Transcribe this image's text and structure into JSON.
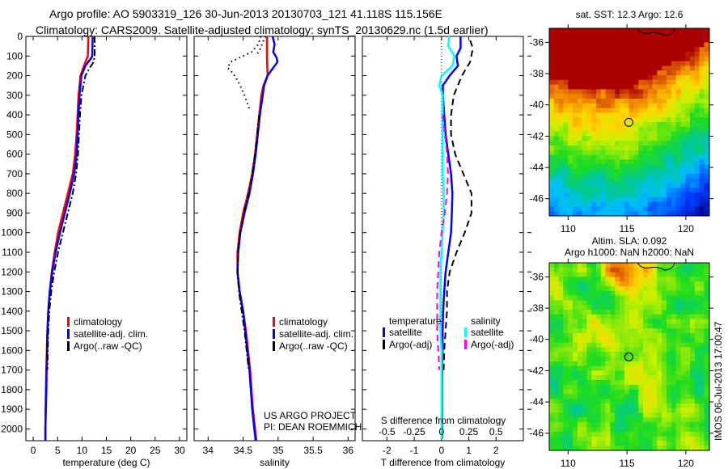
{
  "title_line1": "Argo profile: AO 5903319_126 30-Jun-2013 20130703_121 41.118S 115.156E",
  "title_line2": "Climatology: CARS2009. Satellite-adjusted climatology: synTS_20130629.nc (1.5d earlier)",
  "credit_line1": "US ARGO PROJECT",
  "credit_line2": "PI: DEAN ROEMMICH",
  "timestamp": "IMOS 06-Jul-2013 17:00:47",
  "colors": {
    "climatology": "#ff0000",
    "satellite": "#0000ff",
    "argo": "#000000",
    "salinity_satellite": "#00ffff",
    "salinity_argo": "#ff00ff"
  },
  "chart_data": [
    {
      "type": "line",
      "id": "temperature",
      "xlabel": "temperature (deg C)",
      "ylabel": "",
      "xlim": [
        -1.5,
        31.5
      ],
      "ylim": [
        2060,
        0
      ],
      "xticks": [
        0,
        5,
        10,
        15,
        20,
        25,
        30
      ],
      "yticks": [
        0,
        100,
        200,
        300,
        400,
        500,
        600,
        700,
        800,
        900,
        1000,
        1100,
        1200,
        1300,
        1400,
        1500,
        1600,
        1700,
        1800,
        1900,
        2000
      ],
      "legend": [
        "climatology",
        "satellite-adj. clim.",
        "Argo(..raw -QC)"
      ],
      "legend_position": "lower-center",
      "series": [
        {
          "name": "climatology",
          "style": "solid",
          "color": "#ff0000",
          "depth": [
            0,
            100,
            150,
            200,
            300,
            400,
            500,
            600,
            700,
            800,
            900,
            1000,
            1100,
            1200,
            1300,
            1400,
            1500,
            1600,
            1700,
            1800,
            1900,
            2000,
            2060
          ],
          "values": [
            11.3,
            11.2,
            10.4,
            9.7,
            9.3,
            9.1,
            8.9,
            8.6,
            8.1,
            7.1,
            6.1,
            5.1,
            4.4,
            3.8,
            3.4,
            3.1,
            2.9,
            2.8,
            2.7,
            2.6,
            2.55,
            2.5,
            2.5
          ]
        },
        {
          "name": "satellite-adj. clim.",
          "style": "solid",
          "color": "#0000ff",
          "depth": [
            0,
            100,
            110,
            150,
            200,
            300,
            400,
            500,
            600,
            700,
            800,
            900,
            1000,
            1100,
            1200,
            1300,
            1400,
            1500,
            1600,
            1700,
            1800,
            1900,
            2000,
            2060
          ],
          "values": [
            12.2,
            12.1,
            11.9,
            10.7,
            9.9,
            9.5,
            9.3,
            9.1,
            8.9,
            8.4,
            7.5,
            6.5,
            5.5,
            4.6,
            3.9,
            3.4,
            3.1,
            2.95,
            2.85,
            2.75,
            2.7,
            2.6,
            2.5,
            2.5
          ]
        },
        {
          "name": "Argo(..raw -QC)",
          "style": "dashdot",
          "color": "#000000",
          "depth": [
            0,
            100,
            130,
            160,
            200,
            300,
            400,
            500,
            600,
            700,
            800,
            900,
            1000,
            1100,
            1200,
            1300,
            1400,
            1500,
            1600,
            1700
          ],
          "values": [
            12.6,
            12.6,
            12.4,
            11.6,
            10.7,
            9.9,
            9.6,
            9.4,
            9.2,
            8.8,
            8.1,
            7.1,
            6.1,
            5.1,
            4.3,
            3.7,
            3.3,
            3.1,
            3.0,
            2.9
          ]
        }
      ]
    },
    {
      "type": "line",
      "id": "salinity",
      "xlabel": "salinity",
      "ylabel": "",
      "xlim": [
        33.8,
        36.1
      ],
      "ylim": [
        2060,
        0
      ],
      "xticks": [
        34,
        34.5,
        35,
        35.5,
        36
      ],
      "xticklabels": [
        "34",
        "34.5",
        "35",
        "35.5",
        "36"
      ],
      "legend": [
        "climatology",
        "satellite-adj. clim.",
        "Argo(..raw -QC)"
      ],
      "legend_position": "lower-right",
      "series": [
        {
          "name": "climatology",
          "style": "solid",
          "color": "#ff0000",
          "depth": [
            0,
            100,
            200,
            250,
            300,
            400,
            500,
            600,
            700,
            800,
            900,
            1000,
            1100,
            1200,
            1300,
            1400,
            1500,
            1600,
            1700,
            1800,
            1900,
            2000,
            2060
          ],
          "values": [
            34.84,
            34.84,
            34.85,
            34.79,
            34.76,
            34.73,
            34.7,
            34.67,
            34.63,
            34.57,
            34.5,
            34.45,
            34.42,
            34.42,
            34.45,
            34.5,
            34.54,
            34.57,
            34.6,
            34.62,
            34.64,
            34.67,
            34.69
          ]
        },
        {
          "name": "satellite-adj. clim.",
          "style": "solid",
          "color": "#0000ff",
          "depth": [
            0,
            40,
            80,
            110,
            130,
            160,
            200,
            250,
            300,
            400,
            500,
            600,
            700,
            800,
            900,
            1000,
            1100,
            1200,
            1300,
            1400,
            1500,
            1600,
            1700,
            1800,
            1900,
            2000,
            2060
          ],
          "values": [
            34.92,
            34.95,
            34.93,
            34.98,
            34.99,
            34.93,
            34.85,
            34.8,
            34.78,
            34.74,
            34.71,
            34.68,
            34.64,
            34.59,
            34.52,
            34.46,
            34.43,
            34.42,
            34.45,
            34.5,
            34.53,
            34.56,
            34.59,
            34.61,
            34.63,
            34.66,
            34.68
          ]
        },
        {
          "name": "Argo(..raw -QC)",
          "style": "dotted",
          "color": "#000000",
          "depth": [
            0,
            40,
            80,
            100,
            130,
            160,
            190,
            230,
            300,
            350,
            380
          ],
          "values": [
            34.75,
            34.72,
            34.62,
            34.5,
            34.32,
            34.28,
            34.36,
            34.43,
            34.52,
            34.57,
            34.6
          ]
        },
        {
          "name": "Argo(..raw -QC) shallow branch",
          "style": "dotted",
          "color": "#000000",
          "depth": [
            0,
            30,
            60,
            90
          ],
          "values": [
            34.82,
            34.78,
            34.75,
            34.7
          ]
        },
        {
          "name": "Argo(..raw -QC) deep",
          "style": "dashdot",
          "color": "#000000",
          "depth": [
            400,
            500,
            600,
            700,
            800,
            900,
            1000,
            1100,
            1200,
            1300,
            1400,
            1500,
            1600,
            1700
          ],
          "values": [
            34.73,
            34.7,
            34.67,
            34.63,
            34.58,
            34.51,
            34.46,
            34.43,
            34.42,
            34.44,
            34.48,
            34.52,
            34.55,
            34.58
          ]
        }
      ]
    },
    {
      "type": "line",
      "id": "difference",
      "xlabel": "T difference from climatology",
      "xlabel_top": "S difference from climatology",
      "xlim": [
        -2.9,
        3.0
      ],
      "ylim": [
        2060,
        0
      ],
      "xticks": [
        -2,
        -1,
        0,
        1,
        2
      ],
      "xticklabels": [
        "-2",
        "-1",
        "0",
        "1",
        "2"
      ],
      "s_xticks": [
        -0.5,
        -0.25,
        0,
        0.25,
        0.5
      ],
      "s_xticklabels": [
        "-0.5",
        "-0.25",
        "0",
        "0.25",
        "0.5"
      ],
      "legend_temperature_header": "temperature",
      "legend_salinity_header": "salinity",
      "legend": [
        "satellite",
        "Argo(-adj)",
        "satellite",
        "Argo(-adj)"
      ],
      "legend_position": "lower-center",
      "series": [
        {
          "name": "temperature satellite",
          "style": "solid",
          "color": "#0000ff",
          "units": "T",
          "depth": [
            0,
            60,
            100,
            150,
            200,
            250,
            300,
            400,
            500,
            600,
            700,
            800,
            900,
            1000,
            1100,
            1200,
            1300,
            1400,
            1500,
            1600,
            1700,
            1800,
            1900,
            2000,
            2050
          ],
          "values": [
            0.7,
            0.7,
            0.55,
            0.6,
            0.3,
            0.05,
            0.05,
            0.1,
            0.15,
            0.25,
            0.35,
            0.4,
            0.38,
            0.35,
            0.25,
            0.15,
            0.1,
            0.06,
            0.04,
            0.04,
            0.03,
            0.02,
            0.02,
            0.02,
            0.02
          ]
        },
        {
          "name": "temperature Argo(-adj)",
          "style": "dashed",
          "color": "#000000",
          "units": "T",
          "depth": [
            20,
            60,
            130,
            200,
            300,
            400,
            500,
            600,
            700,
            800,
            900,
            1000,
            1100,
            1200,
            1300,
            1400,
            1500,
            1600,
            1700
          ],
          "values": [
            1.05,
            1.15,
            1.05,
            0.75,
            0.45,
            0.35,
            0.35,
            0.5,
            0.8,
            1.1,
            1.1,
            0.85,
            0.55,
            0.3,
            0.2,
            0.2,
            0.15,
            0.1,
            0.08
          ]
        },
        {
          "name": "salinity satellite",
          "style": "solid",
          "color": "#00ffff",
          "units": "S",
          "depth": [
            0,
            50,
            100,
            150,
            200,
            250,
            300,
            400,
            500,
            600,
            700,
            800,
            900,
            1000,
            1100,
            1200,
            1300,
            1400,
            1500,
            1600,
            1700,
            1800,
            1900,
            2000,
            2050
          ],
          "values": [
            0.07,
            0.06,
            0.12,
            0.1,
            0.0,
            -0.02,
            0.01,
            0.01,
            0.01,
            0.01,
            0.01,
            0.02,
            0.02,
            0.01,
            0.0,
            -0.01,
            -0.01,
            -0.01,
            -0.01,
            0.0,
            0.0,
            0.0,
            0.0,
            0.0,
            0.0
          ]
        },
        {
          "name": "salinity Argo(-adj)",
          "style": "dashed",
          "color": "#ff00ff",
          "units": "S",
          "depth": [
            400,
            500,
            600,
            700,
            800,
            900,
            1000,
            1100,
            1200,
            1300,
            1400,
            1500,
            1600,
            1700
          ],
          "values": [
            0.01,
            0.03,
            0.05,
            0.06,
            0.05,
            0.03,
            0.0,
            -0.02,
            -0.03,
            -0.04,
            -0.04,
            -0.04,
            -0.03,
            -0.02
          ]
        }
      ]
    },
    {
      "type": "heatmap",
      "id": "sst_map",
      "title": "sat. SST: 12.3 Argo: 12.6",
      "xlim": [
        108.4,
        122.0
      ],
      "ylim": [
        -47.1,
        -35.1
      ],
      "xticks": [
        110,
        115,
        120
      ],
      "yticks": [
        -36,
        -38,
        -40,
        -42,
        -44,
        -46
      ],
      "marker": {
        "lon": 115.156,
        "lat": -41.118
      },
      "description": "SST field: dark red (warm) north of ~-39, yellow/orange band -38 to -41, green -41 to -44, blue south of -44"
    },
    {
      "type": "heatmap",
      "id": "sla_map",
      "title_line1": "Altim. SLA: 0.092",
      "title_line2": "Argo h1000: NaN h2000: NaN",
      "xlim": [
        108.4,
        122.0
      ],
      "ylim": [
        -47.1,
        -35.1
      ],
      "xticks": [
        110,
        115,
        120
      ],
      "yticks": [
        -36,
        -38,
        -40,
        -42,
        -44,
        -46
      ],
      "marker": {
        "lon": 115.156,
        "lat": -41.118
      },
      "description": "Sea level anomaly field: mostly green with yellow ridges, orange maximum near 113-116E, -35.5 to -37"
    }
  ]
}
